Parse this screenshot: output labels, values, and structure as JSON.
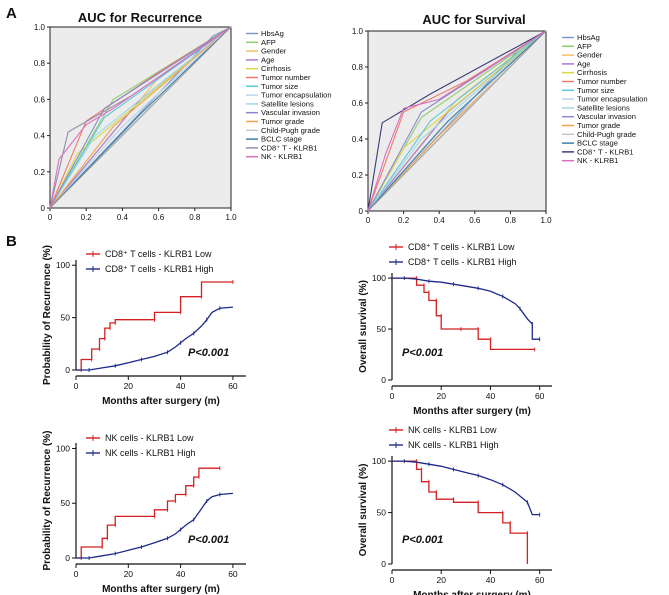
{
  "panels": {
    "a": "A",
    "b": "B"
  },
  "chart_data": [
    {
      "id": "roc-recurrence",
      "type": "line",
      "title": "AUC for Recurrence",
      "xlim": [
        0,
        1
      ],
      "ylim": [
        0,
        1
      ],
      "xticks": [
        "0",
        "0.2",
        "0.4",
        "0.6",
        "0.8",
        "1.0"
      ],
      "yticks": [
        "0",
        "0.2",
        "0.4",
        "0.6",
        "0.8",
        "1.0"
      ],
      "series": [
        {
          "name": "HbsAg",
          "color": "#7e9cc9",
          "x": [
            0,
            0.9,
            1
          ],
          "y": [
            0,
            0.95,
            1
          ]
        },
        {
          "name": "AFP",
          "color": "#8fd06e",
          "x": [
            0,
            0.35,
            1
          ],
          "y": [
            0,
            0.6,
            1
          ]
        },
        {
          "name": "Gender",
          "color": "#f2c06b",
          "x": [
            0,
            0.6,
            1
          ],
          "y": [
            0,
            0.72,
            1
          ]
        },
        {
          "name": "Age",
          "color": "#a77bd6",
          "x": [
            0,
            0.5,
            1
          ],
          "y": [
            0,
            0.6,
            1
          ]
        },
        {
          "name": "Cirrhosis",
          "color": "#d8d84a",
          "x": [
            0,
            0.15,
            1
          ],
          "y": [
            0,
            0.3,
            1
          ]
        },
        {
          "name": "Tumor number",
          "color": "#f07a6a",
          "x": [
            0,
            0.2,
            0.6,
            1
          ],
          "y": [
            0,
            0.48,
            0.75,
            1
          ]
        },
        {
          "name": "Tumor size",
          "color": "#5fc8d8",
          "x": [
            0,
            0.3,
            1
          ],
          "y": [
            0,
            0.5,
            1
          ]
        },
        {
          "name": "Tumor encapsulation",
          "color": "#b9d3ec",
          "x": [
            0,
            0.4,
            1
          ],
          "y": [
            0,
            0.45,
            1
          ]
        },
        {
          "name": "Satellite lesions",
          "color": "#9fd9e8",
          "x": [
            0,
            0.25,
            1
          ],
          "y": [
            0,
            0.4,
            1
          ]
        },
        {
          "name": "Vascular invasion",
          "color": "#8a8acb",
          "x": [
            0,
            0.3,
            1
          ],
          "y": [
            0,
            0.55,
            1
          ]
        },
        {
          "name": "Tumor grade",
          "color": "#f0a24a",
          "x": [
            0,
            0.35,
            1
          ],
          "y": [
            0,
            0.45,
            1
          ]
        },
        {
          "name": "Child-Pugh grade",
          "color": "#c8c8c8",
          "x": [
            0,
            0.95,
            1
          ],
          "y": [
            0,
            0.96,
            1
          ]
        },
        {
          "name": "BCLC stage",
          "color": "#3c7ea8",
          "x": [
            0,
            0.5,
            1
          ],
          "y": [
            0,
            0.52,
            1
          ]
        },
        {
          "name": "CD8⁺ T - KLRB1",
          "color": "#8e8ea8",
          "x": [
            0,
            0.1,
            0.45,
            1
          ],
          "y": [
            0,
            0.42,
            0.62,
            1
          ]
        },
        {
          "name": "NK - KLRB1",
          "color": "#d96fbf",
          "x": [
            0,
            0.05,
            0.2,
            0.35,
            1
          ],
          "y": [
            0,
            0.27,
            0.46,
            0.55,
            1
          ]
        }
      ]
    },
    {
      "id": "roc-survival",
      "type": "line",
      "title": "AUC for Survival",
      "xlim": [
        0,
        1
      ],
      "ylim": [
        0,
        1
      ],
      "xticks": [
        "0",
        "0.2",
        "0.4",
        "0.6",
        "0.8",
        "1.0"
      ],
      "yticks": [
        "0",
        "0.2",
        "0.4",
        "0.6",
        "0.8",
        "1.0"
      ],
      "series": [
        {
          "name": "HbsAg",
          "color": "#7e9cc9",
          "x": [
            0,
            0.85,
            1
          ],
          "y": [
            0,
            0.9,
            1
          ]
        },
        {
          "name": "AFP",
          "color": "#8fd06e",
          "x": [
            0,
            0.3,
            1
          ],
          "y": [
            0,
            0.52,
            1
          ]
        },
        {
          "name": "Gender",
          "color": "#f2c06b",
          "x": [
            0,
            0.5,
            1
          ],
          "y": [
            0,
            0.62,
            1
          ]
        },
        {
          "name": "Age",
          "color": "#a77bd6",
          "x": [
            0,
            0.45,
            1
          ],
          "y": [
            0,
            0.55,
            1
          ]
        },
        {
          "name": "Cirrhosis",
          "color": "#d8d84a",
          "x": [
            0,
            0.2,
            1
          ],
          "y": [
            0,
            0.35,
            1
          ]
        },
        {
          "name": "Tumor number",
          "color": "#f07a6a",
          "x": [
            0,
            0.2,
            0.55,
            1
          ],
          "y": [
            0,
            0.55,
            0.72,
            1
          ]
        },
        {
          "name": "Tumor size",
          "color": "#5fc8d8",
          "x": [
            0,
            0.35,
            1
          ],
          "y": [
            0,
            0.5,
            1
          ]
        },
        {
          "name": "Tumor encapsulation",
          "color": "#b9d3ec",
          "x": [
            0,
            0.4,
            1
          ],
          "y": [
            0,
            0.45,
            1
          ]
        },
        {
          "name": "Satellite lesions",
          "color": "#9fd9e8",
          "x": [
            0,
            0.3,
            1
          ],
          "y": [
            0,
            0.4,
            1
          ]
        },
        {
          "name": "Vascular invasion",
          "color": "#8a8acb",
          "x": [
            0,
            0.3,
            1
          ],
          "y": [
            0,
            0.55,
            1
          ]
        },
        {
          "name": "Tumor grade",
          "color": "#f0a24a",
          "x": [
            0,
            0.4,
            1
          ],
          "y": [
            0,
            0.42,
            1
          ]
        },
        {
          "name": "Child-Pugh grade",
          "color": "#c8c8c8",
          "x": [
            0,
            0.95,
            1
          ],
          "y": [
            0,
            0.96,
            1
          ]
        },
        {
          "name": "BCLC stage",
          "color": "#3c7ea8",
          "x": [
            0,
            0.45,
            1
          ],
          "y": [
            0,
            0.5,
            1
          ]
        },
        {
          "name": "CD8⁺ T - KLRB1",
          "color": "#3c3c7a",
          "x": [
            0,
            0.08,
            0.35,
            1
          ],
          "y": [
            0,
            0.49,
            0.65,
            1
          ]
        },
        {
          "name": "NK - KLRB1",
          "color": "#d96fbf",
          "x": [
            0,
            0.1,
            0.2,
            0.4,
            1
          ],
          "y": [
            0,
            0.32,
            0.57,
            0.62,
            1
          ]
        }
      ]
    },
    {
      "id": "km-cd8-recurrence",
      "type": "line",
      "xlabel": "Months after surgery (m)",
      "ylabel": "Probability of Recurrence (%)",
      "xlim": [
        0,
        65
      ],
      "ylim": [
        0,
        105
      ],
      "xticks": [
        0,
        20,
        40,
        60
      ],
      "yticks": [
        0,
        50,
        100
      ],
      "pvalue": "P<0.001",
      "series": [
        {
          "name": "CD8⁺ T cells - KLRB1 Low",
          "color": "#d42020",
          "x": [
            0,
            2,
            2,
            6,
            6,
            9,
            9,
            11,
            11,
            13,
            13,
            15,
            15,
            30,
            30,
            40,
            40,
            48,
            48,
            60
          ],
          "y": [
            0,
            0,
            10,
            10,
            20,
            20,
            30,
            30,
            40,
            40,
            45,
            45,
            48,
            48,
            55,
            55,
            70,
            70,
            84,
            84
          ]
        },
        {
          "name": "CD8⁺ T cells - KLRB1 High",
          "color": "#1d2a8a",
          "x": [
            0,
            5,
            10,
            15,
            20,
            25,
            30,
            35,
            38,
            40,
            42,
            45,
            48,
            50,
            52,
            55,
            60
          ],
          "y": [
            0,
            0,
            2,
            4,
            7,
            10,
            13,
            17,
            22,
            26,
            30,
            35,
            42,
            48,
            55,
            59,
            60
          ]
        }
      ]
    },
    {
      "id": "km-cd8-survival",
      "type": "line",
      "xlabel": "Months after surgery (m)",
      "ylabel": "Overall survival (%)",
      "xlim": [
        0,
        65
      ],
      "ylim": [
        0,
        105
      ],
      "xticks": [
        0,
        20,
        40,
        60
      ],
      "yticks": [
        0,
        50,
        100
      ],
      "pvalue": "P<0.001",
      "series": [
        {
          "name": "CD8⁺ T cells - KLRB1 Low",
          "color": "#d42020",
          "x": [
            0,
            10,
            10,
            13,
            13,
            15,
            15,
            18,
            18,
            20,
            20,
            28,
            28,
            35,
            35,
            40,
            40,
            58
          ],
          "y": [
            100,
            100,
            93,
            93,
            86,
            86,
            78,
            78,
            63,
            63,
            50,
            50,
            50,
            50,
            40,
            40,
            30,
            30
          ]
        },
        {
          "name": "CD8⁺ T cells - KLRB1 High",
          "color": "#1d2a8a",
          "x": [
            0,
            5,
            10,
            15,
            20,
            25,
            30,
            35,
            40,
            45,
            50,
            52,
            55,
            57,
            57,
            60
          ],
          "y": [
            100,
            100,
            99,
            97,
            96,
            94,
            92,
            90,
            87,
            82,
            75,
            70,
            60,
            55,
            40,
            40
          ]
        }
      ]
    },
    {
      "id": "km-nk-recurrence",
      "type": "line",
      "xlabel": "Months after surgery (m)",
      "ylabel": "Probability of Recurrence (%)",
      "xlim": [
        0,
        65
      ],
      "ylim": [
        0,
        105
      ],
      "xticks": [
        0,
        20,
        40,
        60
      ],
      "yticks": [
        0,
        50,
        100
      ],
      "pvalue": "P<0.001",
      "series": [
        {
          "name": "NK cells - KLRB1 Low",
          "color": "#d42020",
          "x": [
            0,
            2,
            2,
            10,
            10,
            12,
            12,
            15,
            15,
            30,
            30,
            35,
            35,
            38,
            38,
            42,
            42,
            45,
            45,
            47,
            47,
            55
          ],
          "y": [
            0,
            0,
            10,
            10,
            18,
            18,
            30,
            30,
            38,
            38,
            44,
            44,
            52,
            52,
            58,
            58,
            66,
            66,
            74,
            74,
            82,
            82
          ]
        },
        {
          "name": "NK cells - KLRB1 High",
          "color": "#1d2a8a",
          "x": [
            0,
            5,
            10,
            15,
            20,
            25,
            30,
            35,
            38,
            40,
            42,
            45,
            48,
            50,
            52,
            55,
            60
          ],
          "y": [
            0,
            0,
            2,
            4,
            7,
            10,
            14,
            18,
            22,
            26,
            30,
            35,
            45,
            52,
            56,
            58,
            59
          ]
        }
      ]
    },
    {
      "id": "km-nk-survival",
      "type": "line",
      "xlabel": "Months after surgery (m)",
      "ylabel": "Overall survival (%)",
      "xlim": [
        0,
        65
      ],
      "ylim": [
        0,
        105
      ],
      "xticks": [
        0,
        20,
        40,
        60
      ],
      "yticks": [
        0,
        50,
        100
      ],
      "pvalue": "P<0.001",
      "series": [
        {
          "name": "NK cells - KLRB1 Low",
          "color": "#d42020",
          "x": [
            0,
            10,
            10,
            12,
            12,
            15,
            15,
            18,
            18,
            25,
            25,
            35,
            35,
            45,
            45,
            48,
            48,
            55,
            55
          ],
          "y": [
            100,
            100,
            92,
            92,
            80,
            80,
            70,
            70,
            63,
            63,
            60,
            60,
            50,
            50,
            40,
            40,
            30,
            30,
            0
          ]
        },
        {
          "name": "NK cells - KLRB1 High",
          "color": "#1d2a8a",
          "x": [
            0,
            5,
            10,
            15,
            20,
            25,
            30,
            35,
            40,
            45,
            50,
            55,
            57,
            60
          ],
          "y": [
            100,
            100,
            99,
            97,
            95,
            92,
            89,
            86,
            82,
            77,
            70,
            60,
            48,
            48
          ]
        }
      ]
    }
  ]
}
